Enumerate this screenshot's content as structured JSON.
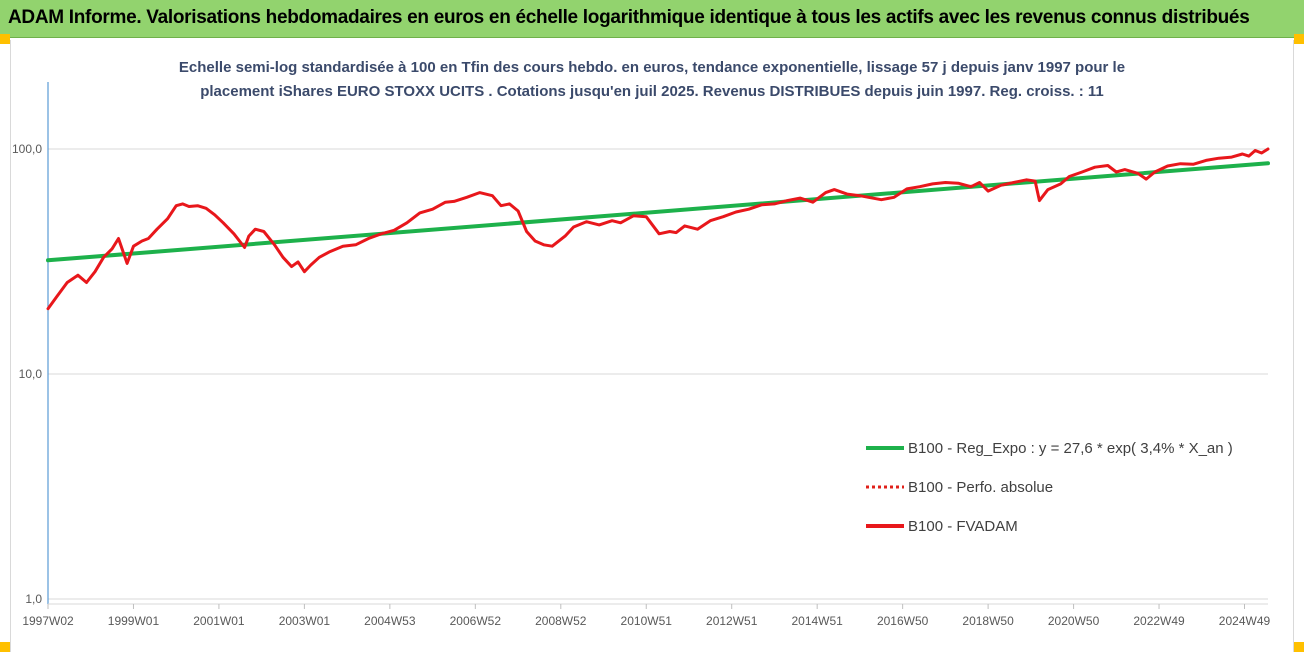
{
  "header": {
    "title": "ADAM Informe. Valorisations hebdomadaires en euros en échelle logarithmique identique à tous les actifs avec les revenus connus distribués"
  },
  "chart_data": {
    "type": "line",
    "title_line1": "Echelle semi-log standardisée à 100 en Tfin des cours hebdo. en euros, tendance exponentielle, lissage 57 j depuis janv 1997 pour le",
    "title_line2": "placement iShares EURO STOXX UCITS . Cotations jusqu'en juil 2025. Revenus DISTRIBUES depuis juin 1997. Reg. croiss. : 11",
    "y_scale": "log",
    "ylim": [
      1,
      100
    ],
    "y_ticks": [
      "100,0",
      "10,0",
      "1,0"
    ],
    "y_tick_values": [
      100,
      10,
      1
    ],
    "xlim": [
      1997.0,
      2025.55
    ],
    "x_ticks": [
      {
        "label": "1997W02",
        "x": 1997.0
      },
      {
        "label": "1999W01",
        "x": 1999.0
      },
      {
        "label": "2001W01",
        "x": 2001.0
      },
      {
        "label": "2003W01",
        "x": 2003.0
      },
      {
        "label": "2004W53",
        "x": 2005.0
      },
      {
        "label": "2006W52",
        "x": 2007.0
      },
      {
        "label": "2008W52",
        "x": 2009.0
      },
      {
        "label": "2010W51",
        "x": 2011.0
      },
      {
        "label": "2012W51",
        "x": 2013.0
      },
      {
        "label": "2014W51",
        "x": 2015.0
      },
      {
        "label": "2016W50",
        "x": 2017.0
      },
      {
        "label": "2018W50",
        "x": 2019.0
      },
      {
        "label": "2020W50",
        "x": 2021.0
      },
      {
        "label": "2022W49",
        "x": 2023.0
      },
      {
        "label": "2024W49",
        "x": 2025.0
      }
    ],
    "legend_position": "right, lower middle",
    "series": [
      {
        "name": "B100 - Reg_Expo : y = 27,6 * exp( 3,4% *  X_an )",
        "color": "#1db14b",
        "style": "solid",
        "x": [
          1997.0,
          2025.55
        ],
        "y": [
          32.0,
          86.5
        ]
      },
      {
        "name": "B100 - Perfo. absolue",
        "color": "#e0201a",
        "style": "dotted",
        "x": [],
        "y": []
      },
      {
        "name": "B100 - FVADAM",
        "color": "#e8171b",
        "style": "solid",
        "x": [
          1997.0,
          1997.2,
          1997.45,
          1997.7,
          1997.9,
          1998.1,
          1998.3,
          1998.5,
          1998.65,
          1998.85,
          1999.0,
          1999.2,
          1999.35,
          1999.55,
          1999.8,
          2000.0,
          2000.15,
          2000.3,
          2000.5,
          2000.7,
          2000.9,
          2001.1,
          2001.35,
          2001.6,
          2001.7,
          2001.85,
          2002.05,
          2002.3,
          2002.5,
          2002.7,
          2002.85,
          2003.0,
          2003.15,
          2003.35,
          2003.6,
          2003.9,
          2004.2,
          2004.5,
          2004.8,
          2005.1,
          2005.4,
          2005.7,
          2006.0,
          2006.3,
          2006.5,
          2006.8,
          2007.1,
          2007.4,
          2007.6,
          2007.8,
          2008.0,
          2008.2,
          2008.4,
          2008.6,
          2008.8,
          2009.1,
          2009.3,
          2009.6,
          2009.9,
          2010.2,
          2010.4,
          2010.7,
          2011.0,
          2011.3,
          2011.55,
          2011.7,
          2011.9,
          2012.2,
          2012.5,
          2012.8,
          2013.1,
          2013.4,
          2013.7,
          2014.0,
          2014.3,
          2014.6,
          2014.9,
          2015.2,
          2015.4,
          2015.7,
          2016.0,
          2016.2,
          2016.5,
          2016.8,
          2017.1,
          2017.4,
          2017.7,
          2018.0,
          2018.3,
          2018.6,
          2018.8,
          2019.0,
          2019.3,
          2019.6,
          2019.9,
          2020.1,
          2020.2,
          2020.4,
          2020.7,
          2020.9,
          2021.2,
          2021.5,
          2021.8,
          2022.0,
          2022.2,
          2022.5,
          2022.7,
          2022.9,
          2023.2,
          2023.5,
          2023.8,
          2024.1,
          2024.4,
          2024.7,
          2024.95,
          2025.1,
          2025.25,
          2025.4,
          2025.55
        ],
        "y": [
          19.5,
          22.0,
          25.5,
          27.5,
          25.5,
          28.5,
          33.0,
          36.0,
          40.0,
          31.0,
          37.0,
          39.0,
          40.0,
          44.0,
          49.0,
          56.0,
          57.0,
          55.5,
          56.0,
          54.5,
          51.0,
          47.0,
          42.0,
          36.5,
          41.0,
          44.0,
          43.0,
          37.5,
          33.0,
          30.0,
          31.5,
          28.5,
          30.5,
          33.0,
          35.0,
          37.0,
          37.5,
          40.0,
          42.0,
          43.5,
          47.0,
          52.0,
          54.0,
          58.0,
          58.5,
          61.0,
          64.0,
          62.0,
          56.0,
          57.0,
          53.0,
          43.0,
          39.0,
          37.5,
          37.0,
          41.0,
          45.0,
          47.5,
          46.0,
          48.0,
          47.0,
          50.5,
          50.0,
          42.0,
          43.0,
          42.5,
          45.5,
          44.0,
          48.0,
          50.0,
          52.5,
          54.0,
          56.5,
          57.0,
          59.0,
          60.5,
          58.0,
          64.0,
          66.0,
          63.0,
          62.0,
          61.0,
          59.5,
          61.0,
          66.5,
          68.0,
          70.0,
          71.0,
          70.5,
          68.0,
          71.0,
          65.0,
          69.0,
          71.0,
          73.0,
          72.0,
          59.0,
          66.0,
          70.0,
          75.5,
          79.0,
          83.0,
          84.5,
          79.0,
          81.0,
          78.0,
          73.5,
          79.0,
          84.0,
          86.0,
          85.5,
          89.0,
          91.0,
          92.0,
          95.0,
          93.0,
          98.5,
          96.0,
          100.0
        ]
      }
    ]
  }
}
